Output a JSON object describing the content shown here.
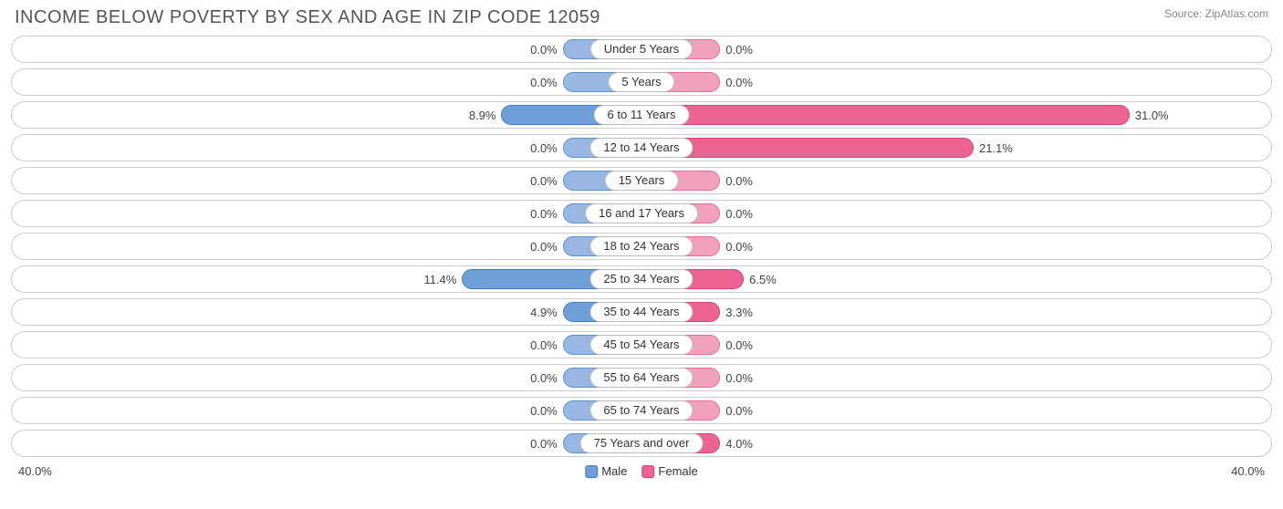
{
  "title": "INCOME BELOW POVERTY BY SEX AND AGE IN ZIP CODE 12059",
  "source": "Source: ZipAtlas.com",
  "chart": {
    "type": "diverging-bar",
    "axis_max": 40.0,
    "axis_label_left": "40.0%",
    "axis_label_right": "40.0%",
    "min_bar_pct": 5.0,
    "male": {
      "fill": "#98b7e2",
      "stroke": "#5a8fd6",
      "highlight_fill": "#6f9fd8",
      "highlight_stroke": "#3f7ac4",
      "legend": "Male"
    },
    "female": {
      "fill": "#f2a1bd",
      "stroke": "#e66a96",
      "highlight_fill": "#ec6394",
      "highlight_stroke": "#d93e77",
      "legend": "Female"
    },
    "background_color": "#ffffff",
    "track_border": "#cccccc",
    "rows": [
      {
        "label": "Under 5 Years",
        "male": 0.0,
        "female": 0.0,
        "male_txt": "0.0%",
        "female_txt": "0.0%"
      },
      {
        "label": "5 Years",
        "male": 0.0,
        "female": 0.0,
        "male_txt": "0.0%",
        "female_txt": "0.0%"
      },
      {
        "label": "6 to 11 Years",
        "male": 8.9,
        "female": 31.0,
        "male_txt": "8.9%",
        "female_txt": "31.0%"
      },
      {
        "label": "12 to 14 Years",
        "male": 0.0,
        "female": 21.1,
        "male_txt": "0.0%",
        "female_txt": "21.1%"
      },
      {
        "label": "15 Years",
        "male": 0.0,
        "female": 0.0,
        "male_txt": "0.0%",
        "female_txt": "0.0%"
      },
      {
        "label": "16 and 17 Years",
        "male": 0.0,
        "female": 0.0,
        "male_txt": "0.0%",
        "female_txt": "0.0%"
      },
      {
        "label": "18 to 24 Years",
        "male": 0.0,
        "female": 0.0,
        "male_txt": "0.0%",
        "female_txt": "0.0%"
      },
      {
        "label": "25 to 34 Years",
        "male": 11.4,
        "female": 6.5,
        "male_txt": "11.4%",
        "female_txt": "6.5%"
      },
      {
        "label": "35 to 44 Years",
        "male": 4.9,
        "female": 3.3,
        "male_txt": "4.9%",
        "female_txt": "3.3%"
      },
      {
        "label": "45 to 54 Years",
        "male": 0.0,
        "female": 0.0,
        "male_txt": "0.0%",
        "female_txt": "0.0%"
      },
      {
        "label": "55 to 64 Years",
        "male": 0.0,
        "female": 0.0,
        "male_txt": "0.0%",
        "female_txt": "0.0%"
      },
      {
        "label": "65 to 74 Years",
        "male": 0.0,
        "female": 0.0,
        "male_txt": "0.0%",
        "female_txt": "0.0%"
      },
      {
        "label": "75 Years and over",
        "male": 0.0,
        "female": 4.0,
        "male_txt": "0.0%",
        "female_txt": "4.0%"
      }
    ]
  }
}
